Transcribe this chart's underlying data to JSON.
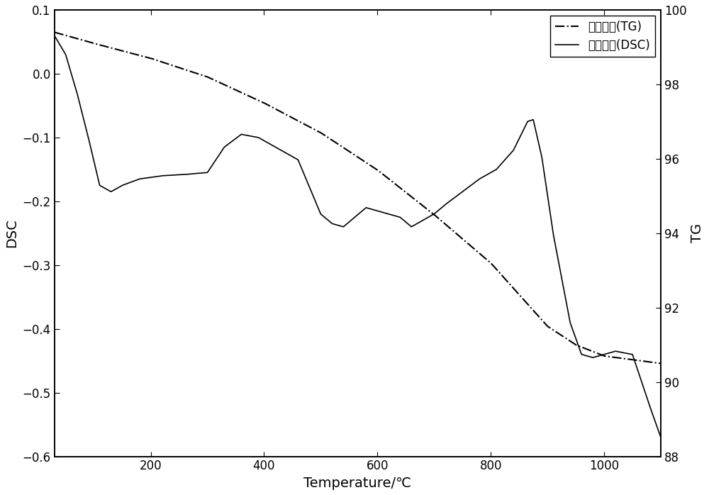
{
  "xlabel": "Temperature/℃",
  "ylabel_left": "DSC",
  "ylabel_right": "TG",
  "xlim": [
    30,
    1100
  ],
  "ylim_left": [
    -0.6,
    0.1
  ],
  "ylim_right": [
    88,
    100
  ],
  "xticks": [
    200,
    400,
    600,
    800,
    1000
  ],
  "yticks_left": [
    0.1,
    0.0,
    -0.1,
    -0.2,
    -0.3,
    -0.4,
    -0.5,
    -0.6
  ],
  "yticks_right": [
    88,
    90,
    92,
    94,
    96,
    98,
    100
  ],
  "legend_tg": "热重曲线(TG)",
  "legend_dsc": "差热曲线(DSC)",
  "line_color": "#000000",
  "background_color": "#ffffff"
}
